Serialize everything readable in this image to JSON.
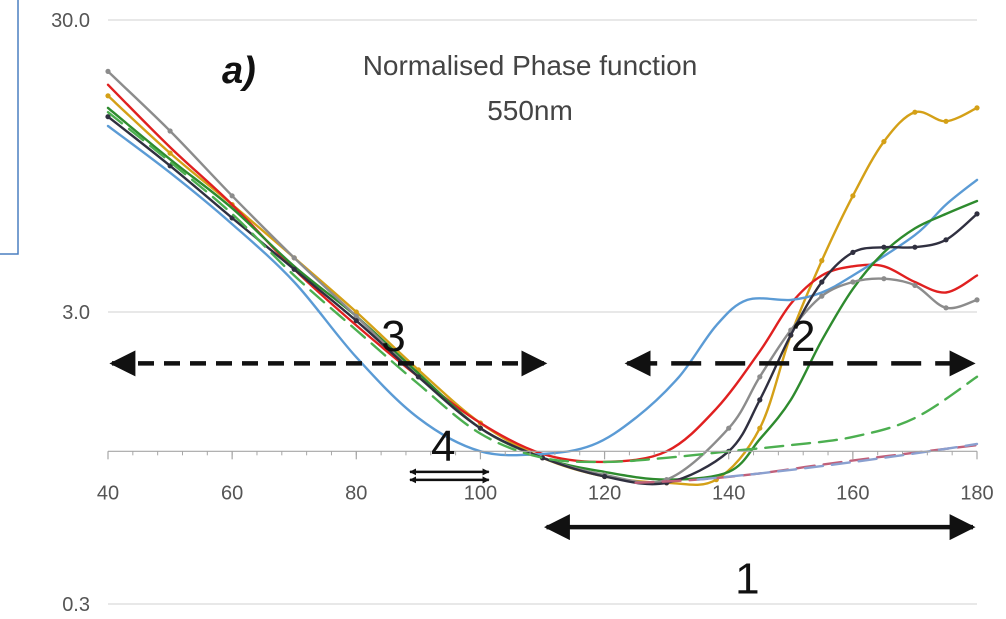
{
  "chart_data": {
    "type": "line",
    "panel_label": "a)",
    "title": [
      "Normalised Phase function",
      "550nm"
    ],
    "xlabel": "",
    "ylabel": "",
    "y_scale": "log",
    "xlim": [
      40,
      180
    ],
    "ylim": [
      0.3,
      30.0
    ],
    "x_ticks": [
      40,
      60,
      80,
      100,
      120,
      140,
      160,
      180
    ],
    "y_ticks": [
      0.3,
      3.0,
      30.0
    ],
    "y_tick_labels": [
      "0.3",
      "3.0",
      "30.0"
    ],
    "grid": "horizontal",
    "series": [
      {
        "color": "#d4a017",
        "style": "solid-markers",
        "x": [
          40,
          50,
          60,
          70,
          80,
          90,
          100,
          110,
          120,
          130,
          138,
          145,
          150,
          155,
          160,
          165,
          170,
          175,
          180
        ],
        "y": [
          16.5,
          10.5,
          7.0,
          4.6,
          3.0,
          1.9,
          1.25,
          0.95,
          0.82,
          0.78,
          0.8,
          1.2,
          2.5,
          4.5,
          7.5,
          11.5,
          14.5,
          13.5,
          15.0
        ]
      },
      {
        "color": "#e02020",
        "style": "solid",
        "x": [
          40,
          50,
          60,
          70,
          80,
          90,
          100,
          110,
          120,
          130,
          138,
          145,
          150,
          155,
          160,
          165,
          170,
          175,
          180
        ],
        "y": [
          18.0,
          11.0,
          7.0,
          4.2,
          2.7,
          1.8,
          1.25,
          0.98,
          0.92,
          1.0,
          1.4,
          2.2,
          3.2,
          4.0,
          4.3,
          4.3,
          3.8,
          3.5,
          4.0
        ]
      },
      {
        "color": "#5b9bd5",
        "style": "solid",
        "x": [
          40,
          50,
          60,
          70,
          80,
          90,
          100,
          110,
          118,
          125,
          132,
          138,
          143,
          150,
          155,
          160,
          170,
          175,
          180
        ],
        "y": [
          13.0,
          9.0,
          6.0,
          3.8,
          2.1,
          1.3,
          1.0,
          0.98,
          1.05,
          1.3,
          1.8,
          2.7,
          3.3,
          3.3,
          3.5,
          4.0,
          5.5,
          7.0,
          8.5
        ]
      },
      {
        "color": "#2e8b2e",
        "style": "solid",
        "x": [
          40,
          50,
          60,
          70,
          80,
          90,
          100,
          110,
          120,
          130,
          140,
          145,
          150,
          155,
          160,
          165,
          170,
          175,
          180
        ],
        "y": [
          15.0,
          10.0,
          6.8,
          4.3,
          2.9,
          1.85,
          1.2,
          0.95,
          0.85,
          0.8,
          0.85,
          1.1,
          1.5,
          2.4,
          3.6,
          4.8,
          5.8,
          6.5,
          7.2
        ]
      },
      {
        "color": "#8c8c8c",
        "style": "solid-markers",
        "x": [
          40,
          50,
          60,
          70,
          80,
          90,
          100,
          110,
          120,
          130,
          140,
          145,
          150,
          155,
          160,
          165,
          170,
          175,
          180
        ],
        "y": [
          20.0,
          12.5,
          7.5,
          4.6,
          2.9,
          1.8,
          1.2,
          0.95,
          0.83,
          0.8,
          1.2,
          1.8,
          2.6,
          3.4,
          3.8,
          3.9,
          3.7,
          3.1,
          3.3
        ]
      },
      {
        "color": "#303040",
        "style": "solid-markers",
        "x": [
          40,
          50,
          60,
          70,
          80,
          90,
          100,
          110,
          120,
          130,
          140,
          145,
          150,
          155,
          160,
          165,
          170,
          175,
          180
        ],
        "y": [
          14.0,
          9.5,
          6.3,
          4.2,
          2.8,
          1.8,
          1.2,
          0.95,
          0.82,
          0.78,
          1.0,
          1.5,
          2.5,
          3.8,
          4.8,
          5.0,
          5.0,
          5.3,
          6.5
        ]
      },
      {
        "color": "#4caf50",
        "style": "dashed",
        "x": [
          40,
          50,
          60,
          70,
          80,
          90,
          100,
          110,
          120,
          130,
          140,
          150,
          160,
          170,
          180
        ],
        "y": [
          14.5,
          9.8,
          6.5,
          4.0,
          2.6,
          1.7,
          1.15,
          0.95,
          0.92,
          0.95,
          1.0,
          1.05,
          1.12,
          1.3,
          1.8
        ]
      },
      {
        "color": "#c0607a",
        "style": "dashed",
        "x": [
          125,
          135,
          145,
          155,
          165,
          175,
          180
        ],
        "y": [
          0.78,
          0.8,
          0.84,
          0.9,
          0.96,
          1.02,
          1.05
        ]
      },
      {
        "color": "#8aa0d0",
        "style": "dashed",
        "x": [
          135,
          145,
          155,
          165,
          175,
          180
        ],
        "y": [
          0.8,
          0.84,
          0.89,
          0.95,
          1.02,
          1.06
        ]
      }
    ],
    "annotations": [
      {
        "label": "1",
        "x_from": 110,
        "x_to": 180,
        "y": 0.55,
        "style": "solid",
        "label_x": 143,
        "label_y": 0.37
      },
      {
        "label": "2",
        "x_from": 123,
        "x_to": 180,
        "y": 2.0,
        "style": "dashed",
        "label_x": 152,
        "label_y": 2.5
      },
      {
        "label": "3",
        "x_from": 40,
        "x_to": 111,
        "y": 2.0,
        "style": "dashed",
        "label_x": 86,
        "label_y": 2.5
      },
      {
        "label": "4",
        "x_from": 88,
        "x_to": 102,
        "y": 0.85,
        "style": "solid",
        "label_x": 94,
        "label_y": 1.05
      }
    ]
  }
}
